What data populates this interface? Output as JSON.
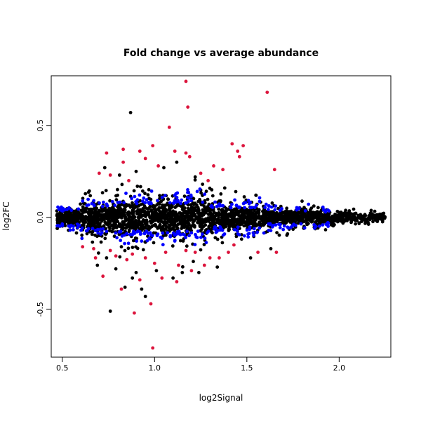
{
  "chart_data": {
    "type": "scatter",
    "title": "Fold change vs average abundance",
    "xlabel": "log2Signal",
    "ylabel": "log2FC",
    "xlim": [
      0.44,
      2.28
    ],
    "ylim": [
      -0.76,
      0.77
    ],
    "x_ticks": [
      0.5,
      1.0,
      1.5,
      2.0
    ],
    "x_tick_labels": [
      "0.5",
      "1.0",
      "1.5",
      "2.0"
    ],
    "y_ticks": [
      -0.5,
      0.0,
      0.5
    ],
    "y_tick_labels": [
      "-0.5",
      "0.0",
      "0.5"
    ],
    "grid": false,
    "legend": "none",
    "point_colors": {
      "black": "#000000",
      "blue": "#0000ff",
      "red": "#dc143c"
    },
    "series": [
      {
        "color": "red",
        "points": [
          [
            1.17,
            0.74
          ],
          [
            1.61,
            0.68
          ],
          [
            1.18,
            0.6
          ],
          [
            1.08,
            0.49
          ],
          [
            0.99,
            0.39
          ],
          [
            1.42,
            0.4
          ],
          [
            1.48,
            0.39
          ],
          [
            1.45,
            0.36
          ],
          [
            0.74,
            0.35
          ],
          [
            0.83,
            0.37
          ],
          [
            0.92,
            0.36
          ],
          [
            1.11,
            0.36
          ],
          [
            1.17,
            0.35
          ],
          [
            1.19,
            0.33
          ],
          [
            1.46,
            0.33
          ],
          [
            1.32,
            0.28
          ],
          [
            1.65,
            0.26
          ],
          [
            0.7,
            0.24
          ],
          [
            0.76,
            0.23
          ],
          [
            0.83,
            0.3
          ],
          [
            0.95,
            0.32
          ],
          [
            1.02,
            0.28
          ],
          [
            1.25,
            0.24
          ],
          [
            1.37,
            0.26
          ],
          [
            1.29,
            0.2
          ],
          [
            0.86,
            0.2
          ],
          [
            0.79,
            -0.21
          ],
          [
            0.88,
            -0.2
          ],
          [
            0.95,
            -0.22
          ],
          [
            1.0,
            -0.25
          ],
          [
            1.06,
            -0.19
          ],
          [
            1.22,
            -0.19
          ],
          [
            1.3,
            -0.22
          ],
          [
            1.4,
            -0.19
          ],
          [
            1.56,
            -0.19
          ],
          [
            0.67,
            -0.17
          ],
          [
            0.72,
            -0.32
          ],
          [
            0.82,
            -0.39
          ],
          [
            0.92,
            -0.34
          ],
          [
            0.98,
            -0.47
          ],
          [
            1.04,
            -0.33
          ],
          [
            1.12,
            -0.35
          ],
          [
            1.2,
            -0.29
          ],
          [
            0.89,
            -0.52
          ],
          [
            0.99,
            -0.71
          ],
          [
            1.13,
            -0.26
          ],
          [
            0.85,
            -0.23
          ],
          [
            1.35,
            -0.22
          ],
          [
            1.27,
            -0.26
          ],
          [
            1.17,
            -0.18
          ],
          [
            0.61,
            -0.16
          ],
          [
            0.68,
            -0.22
          ],
          [
            1.66,
            -0.19
          ],
          [
            0.76,
            -0.18
          ],
          [
            1.43,
            -0.15
          ]
        ]
      },
      {
        "color": "black",
        "points": [
          [
            0.87,
            0.57
          ],
          [
            0.76,
            -0.51
          ],
          [
            0.84,
            -0.38
          ],
          [
            0.95,
            -0.43
          ],
          [
            1.1,
            -0.33
          ],
          [
            0.79,
            -0.28
          ],
          [
            0.69,
            -0.26
          ],
          [
            0.9,
            -0.3
          ],
          [
            1.24,
            -0.3
          ],
          [
            1.34,
            -0.27
          ],
          [
            1.52,
            -0.22
          ],
          [
            1.63,
            -0.17
          ],
          [
            0.73,
            0.27
          ],
          [
            0.81,
            0.23
          ],
          [
            0.9,
            0.25
          ],
          [
            1.05,
            0.27
          ],
          [
            1.12,
            0.3
          ],
          [
            1.22,
            0.22
          ],
          [
            1.26,
            0.18
          ],
          [
            1.38,
            0.16
          ],
          [
            1.55,
            0.12
          ],
          [
            0.93,
            -0.39
          ],
          [
            0.88,
            -0.33
          ],
          [
            1.21,
            -0.24
          ],
          [
            0.74,
            -0.22
          ],
          [
            1.01,
            -0.29
          ],
          [
            1.15,
            -0.3
          ],
          [
            0.82,
            -0.16
          ],
          [
            1.31,
            0.15
          ],
          [
            1.44,
            0.14
          ]
        ]
      }
    ]
  }
}
